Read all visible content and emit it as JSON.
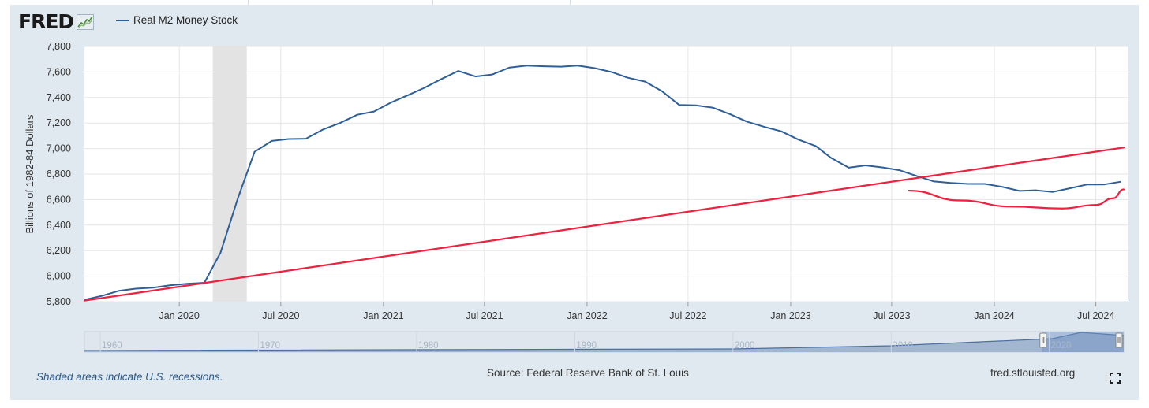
{
  "header": {
    "logo_text": "FRED",
    "logo_mark": "chart-trend-icon",
    "legend_label": "Real M2 Money Stock",
    "legend_color": "#2f5f98"
  },
  "chart_data": {
    "type": "line",
    "ylabel": "Billions of 1982-84 Dollars",
    "ylim": [
      5800,
      7800
    ],
    "yticks": [
      5800,
      6000,
      6200,
      6400,
      6600,
      6800,
      7000,
      7200,
      7400,
      7600,
      7800
    ],
    "ytick_labels": [
      "5,800",
      "6,000",
      "6,200",
      "6,400",
      "6,600",
      "6,800",
      "7,000",
      "7,200",
      "7,400",
      "7,600",
      "7,800"
    ],
    "xlim": [
      "2019-07-15",
      "2024-08-20"
    ],
    "xticks": [
      "2020-01-01",
      "2020-07-01",
      "2021-01-01",
      "2021-07-01",
      "2022-01-01",
      "2022-07-01",
      "2023-01-01",
      "2023-07-01",
      "2024-01-01",
      "2024-07-01"
    ],
    "xtick_labels": [
      "Jan 2020",
      "Jul 2020",
      "Jan 2021",
      "Jul 2021",
      "Jan 2022",
      "Jul 2022",
      "Jan 2023",
      "Jul 2023",
      "Jan 2024",
      "Jul 2024"
    ],
    "recession": {
      "start": "2020-03-01",
      "end": "2020-05-01",
      "color": "#e3e3e3"
    },
    "series": [
      {
        "name": "Real M2 Money Stock",
        "color": "#2f5f98",
        "points": [
          [
            "2019-07-15",
            5815
          ],
          [
            "2019-08-15",
            5845
          ],
          [
            "2019-09-15",
            5885
          ],
          [
            "2019-10-15",
            5902
          ],
          [
            "2019-11-15",
            5910
          ],
          [
            "2019-12-15",
            5928
          ],
          [
            "2020-01-15",
            5940
          ],
          [
            "2020-02-15",
            5948
          ],
          [
            "2020-03-15",
            6185
          ],
          [
            "2020-04-15",
            6610
          ],
          [
            "2020-05-15",
            6975
          ],
          [
            "2020-06-15",
            7060
          ],
          [
            "2020-07-15",
            7075
          ],
          [
            "2020-08-15",
            7077
          ],
          [
            "2020-09-15",
            7150
          ],
          [
            "2020-10-15",
            7200
          ],
          [
            "2020-11-15",
            7265
          ],
          [
            "2020-12-15",
            7290
          ],
          [
            "2021-01-15",
            7362
          ],
          [
            "2021-02-15",
            7420
          ],
          [
            "2021-03-15",
            7475
          ],
          [
            "2021-04-15",
            7545
          ],
          [
            "2021-05-15",
            7608
          ],
          [
            "2021-06-15",
            7565
          ],
          [
            "2021-07-15",
            7580
          ],
          [
            "2021-08-15",
            7635
          ],
          [
            "2021-09-15",
            7650
          ],
          [
            "2021-10-15",
            7645
          ],
          [
            "2021-11-15",
            7642
          ],
          [
            "2021-12-15",
            7650
          ],
          [
            "2022-01-15",
            7630
          ],
          [
            "2022-02-15",
            7598
          ],
          [
            "2022-03-15",
            7555
          ],
          [
            "2022-04-15",
            7525
          ],
          [
            "2022-05-15",
            7450
          ],
          [
            "2022-06-15",
            7342
          ],
          [
            "2022-07-15",
            7338
          ],
          [
            "2022-08-15",
            7320
          ],
          [
            "2022-09-15",
            7268
          ],
          [
            "2022-10-15",
            7210
          ],
          [
            "2022-11-15",
            7170
          ],
          [
            "2022-12-15",
            7135
          ],
          [
            "2023-01-15",
            7070
          ],
          [
            "2023-02-15",
            7020
          ],
          [
            "2023-03-15",
            6925
          ],
          [
            "2023-04-15",
            6850
          ],
          [
            "2023-05-15",
            6868
          ],
          [
            "2023-06-15",
            6852
          ],
          [
            "2023-07-15",
            6830
          ],
          [
            "2023-08-15",
            6785
          ],
          [
            "2023-09-15",
            6742
          ],
          [
            "2023-10-15",
            6730
          ],
          [
            "2023-11-15",
            6723
          ],
          [
            "2023-12-15",
            6723
          ],
          [
            "2024-01-15",
            6700
          ],
          [
            "2024-02-15",
            6668
          ],
          [
            "2024-03-15",
            6673
          ],
          [
            "2024-04-15",
            6660
          ],
          [
            "2024-05-15",
            6688
          ],
          [
            "2024-06-15",
            6718
          ],
          [
            "2024-07-15",
            6718
          ],
          [
            "2024-08-15",
            6740
          ]
        ]
      }
    ],
    "overlays": [
      {
        "kind": "trend-line",
        "color": "#f0203e",
        "points": [
          [
            "2019-07-15",
            5808
          ],
          [
            "2024-08-20",
            7008
          ]
        ]
      },
      {
        "kind": "trend-curve",
        "color": "#f0203e",
        "points": [
          [
            "2023-08-01",
            6670
          ],
          [
            "2023-11-01",
            6593
          ],
          [
            "2024-02-01",
            6545
          ],
          [
            "2024-05-01",
            6530
          ],
          [
            "2024-07-01",
            6558
          ],
          [
            "2024-08-01",
            6610
          ],
          [
            "2024-08-20",
            6680
          ]
        ]
      }
    ],
    "navigator": {
      "labels": [
        "1960",
        "1970",
        "1980",
        "1990",
        "2000",
        "2010",
        "2020"
      ],
      "selected_range": "2019-2024"
    }
  },
  "footer": {
    "recession_note": "Shaded areas indicate U.S. recessions.",
    "source": "Source: Federal Reserve Bank of St. Louis",
    "site": "fred.stlouisfed.org",
    "fullscreen_icon": "fullscreen-icon"
  }
}
